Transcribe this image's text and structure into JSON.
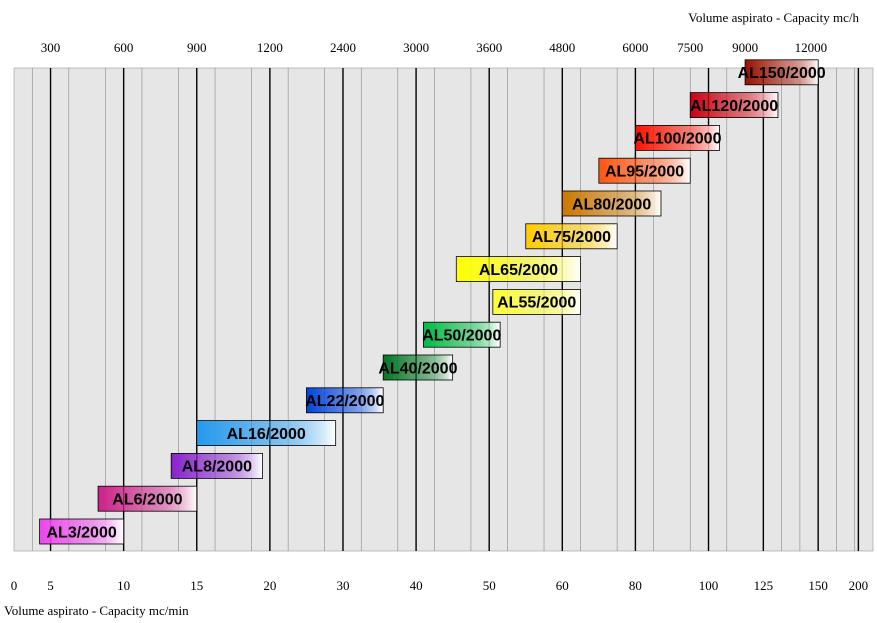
{
  "chart_data": {
    "type": "bar",
    "subtype": "floating-range-bar",
    "x_axis_top": {
      "label": "Volume aspirato - Capacity mc/h",
      "ticks": [
        "300",
        "600",
        "900",
        "1200",
        "2400",
        "3000",
        "3600",
        "4800",
        "6000",
        "7500",
        "9000",
        "12000"
      ]
    },
    "x_axis_bottom": {
      "label": "Volume aspirato - Capacity mc/min",
      "ticks": [
        "0",
        "5",
        "10",
        "15",
        "20",
        "30",
        "40",
        "50",
        "60",
        "80",
        "100",
        "125",
        "150",
        "200"
      ]
    },
    "grid": true,
    "series": [
      {
        "name": "AL3/2000",
        "start": 0.7,
        "end": 3.0,
        "color": "#ee44ee"
      },
      {
        "name": "AL6/2000",
        "start": 2.3,
        "end": 5.0,
        "color": "#cc2288"
      },
      {
        "name": "AL8/2000",
        "start": 4.3,
        "end": 6.8,
        "color": "#8822cc"
      },
      {
        "name": "AL16/2000",
        "start": 5.0,
        "end": 8.8,
        "color": "#2299ee"
      },
      {
        "name": "AL22/2000",
        "start": 8.0,
        "end": 10.1,
        "color": "#0044dd"
      },
      {
        "name": "AL40/2000",
        "start": 10.1,
        "end": 12.0,
        "color": "#007722"
      },
      {
        "name": "AL50/2000",
        "start": 11.2,
        "end": 13.3,
        "color": "#00bb44"
      },
      {
        "name": "AL55/2000",
        "start": 13.1,
        "end": 15.5,
        "color": "#ffff33"
      },
      {
        "name": "AL65/2000",
        "start": 12.1,
        "end": 15.5,
        "color": "#ffff00"
      },
      {
        "name": "AL75/2000",
        "start": 14.0,
        "end": 16.5,
        "color": "#ffcc00"
      },
      {
        "name": "AL80/2000",
        "start": 15.0,
        "end": 17.7,
        "color": "#cc7700"
      },
      {
        "name": "AL95/2000",
        "start": 16.0,
        "end": 18.5,
        "color": "#ff5511"
      },
      {
        "name": "AL100/2000",
        "start": 17.0,
        "end": 19.3,
        "color": "#ff1100"
      },
      {
        "name": "AL120/2000",
        "start": 18.5,
        "end": 20.9,
        "color": "#cc0011"
      },
      {
        "name": "AL150/2000",
        "start": 20.0,
        "end": 22.0,
        "color": "#991100"
      }
    ]
  }
}
